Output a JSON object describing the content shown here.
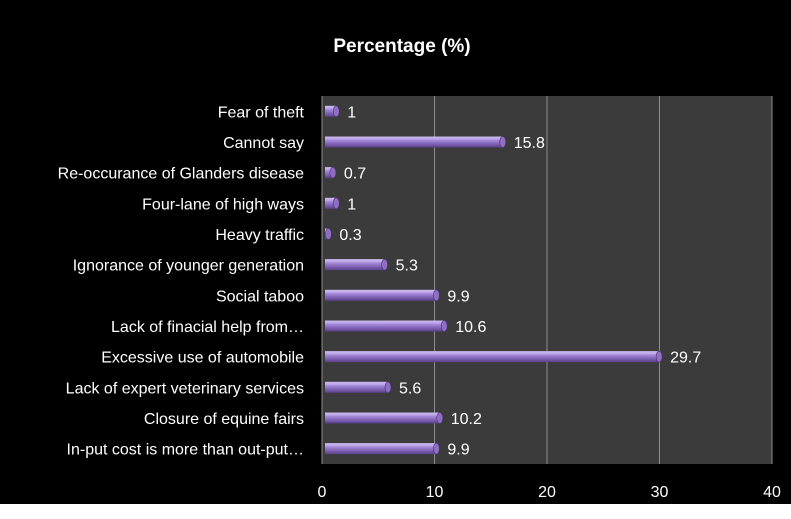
{
  "chart_data": {
    "type": "bar",
    "orientation": "horizontal",
    "title": "Percentage (%)",
    "xlabel": "",
    "ylabel": "",
    "xlim": [
      0,
      40
    ],
    "x_ticks": [
      "0",
      "10",
      "20",
      "30",
      "40"
    ],
    "grid": "vertical gridlines",
    "legend": "none",
    "categories": [
      "Fear of theft",
      "Cannot say",
      "Re-occurance of Glanders disease",
      "Four-lane of high ways",
      "Heavy traffic",
      "Ignorance of younger generation",
      "Social taboo",
      "Lack of  finacial help from…",
      "Excessive use of automobile",
      "Lack of  expert veterinary services",
      "Closure of equine fairs",
      "In-put cost is more than out-put…"
    ],
    "values": [
      1,
      15.8,
      0.7,
      1,
      0.3,
      5.3,
      9.9,
      10.6,
      29.7,
      5.6,
      10.2,
      9.9
    ],
    "data_labels": [
      "1",
      "15.8",
      "0.7",
      "1",
      "0.3",
      "5.3",
      "9.9",
      "10.6",
      "29.7",
      "5.6",
      "10.2",
      "9.9"
    ],
    "colors": {
      "background": "#000000",
      "plot_area": "#3b3b3b",
      "gridline": "#8c8c8c",
      "bar_fill": "#8e6fc4",
      "bar_light": "#c9b6ee",
      "bar_dark": "#4b3372",
      "text": "#ffffff",
      "watermark": "#e6e6e6"
    }
  }
}
